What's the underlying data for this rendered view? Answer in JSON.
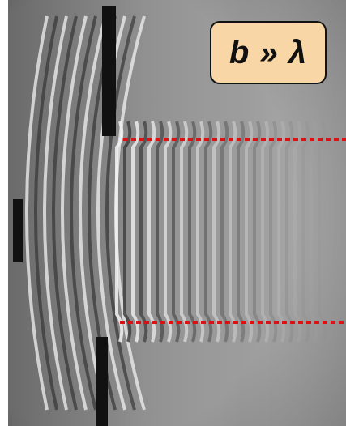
{
  "figure": {
    "label_text": "b » λ",
    "label_fill": "#f8d6a6",
    "label_border": "#111111",
    "guide_color": "#dd1111",
    "barrier_color": "#111111",
    "wave_light": "#f2f2f2",
    "wave_dark": "#3a3a3a"
  }
}
